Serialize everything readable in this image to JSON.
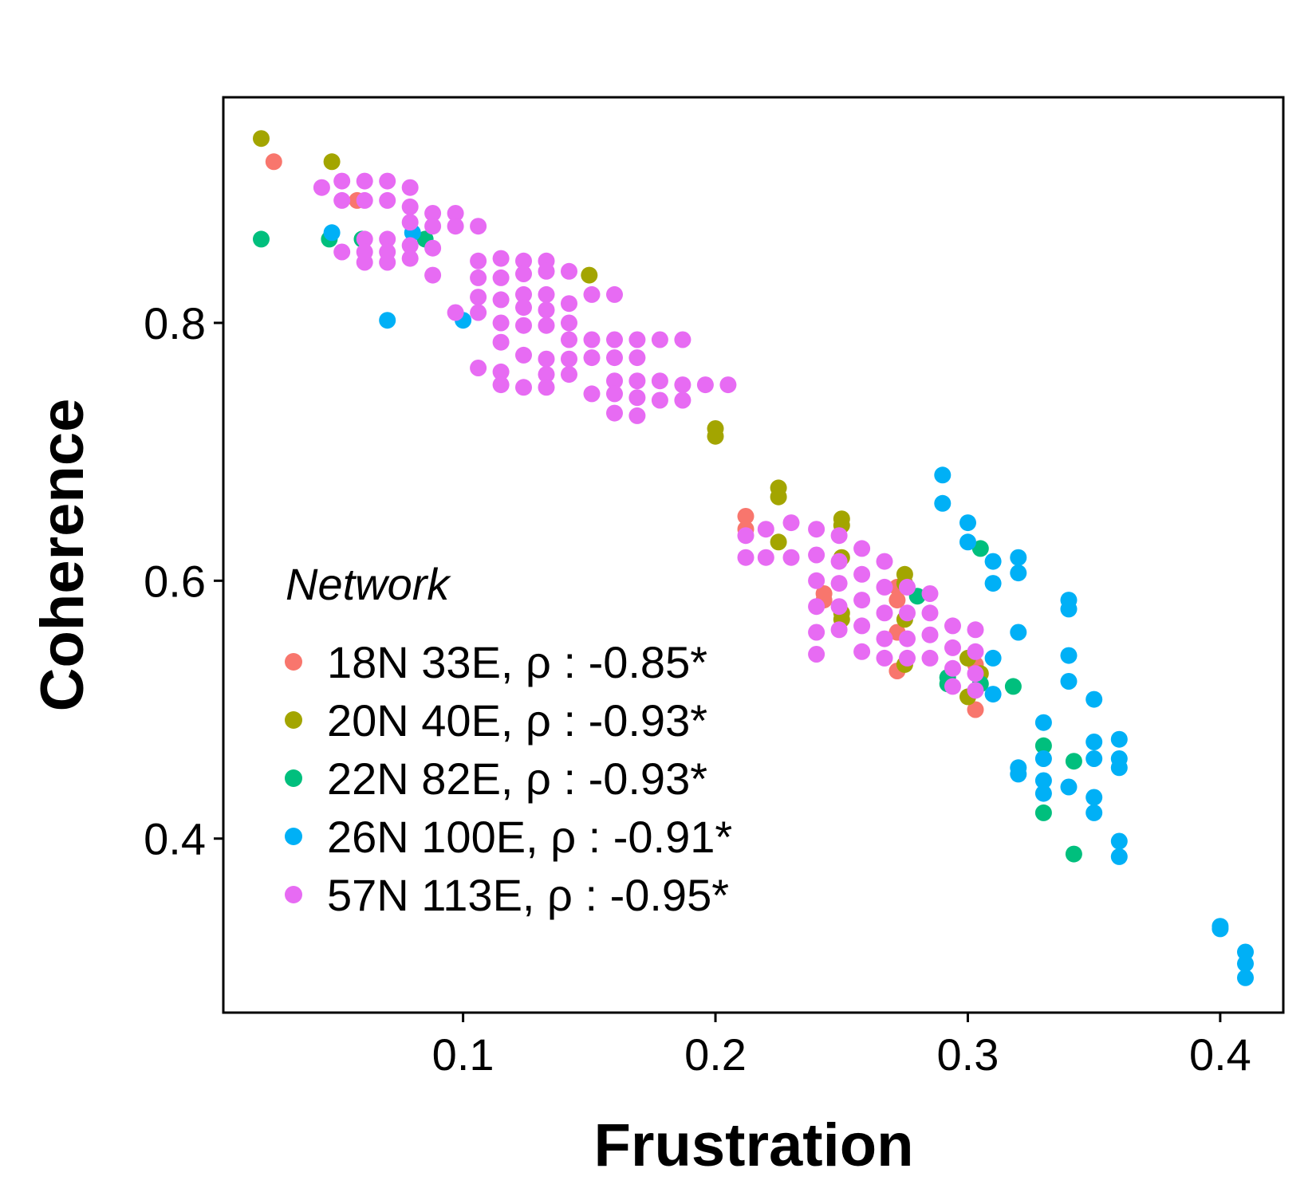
{
  "chart_data": {
    "type": "scatter",
    "xlabel": "Frustration",
    "ylabel": "Coherence",
    "xlim": [
      0.005,
      0.425
    ],
    "ylim": [
      0.265,
      0.975
    ],
    "xticks": [
      "0.1",
      "0.2",
      "0.3",
      "0.4"
    ],
    "yticks": [
      "0.4",
      "0.6",
      "0.8"
    ],
    "xtick_values": [
      0.1,
      0.2,
      0.3,
      0.4
    ],
    "ytick_values": [
      0.4,
      0.6,
      0.8
    ],
    "grid": false,
    "legend": {
      "title": "Network",
      "position": "inside-bottom-left"
    },
    "series": [
      {
        "name": "18N 33E, ρ : -0.85*",
        "color": "#F8766D",
        "points": [
          [
            0.025,
            0.925
          ],
          [
            0.058,
            0.895
          ],
          [
            0.212,
            0.65
          ],
          [
            0.212,
            0.64
          ],
          [
            0.243,
            0.59
          ],
          [
            0.243,
            0.585
          ],
          [
            0.272,
            0.595
          ],
          [
            0.272,
            0.585
          ],
          [
            0.272,
            0.56
          ],
          [
            0.272,
            0.53
          ],
          [
            0.303,
            0.535
          ],
          [
            0.303,
            0.5
          ]
        ]
      },
      {
        "name": "20N 40E, ρ : -0.93*",
        "color": "#A3A500",
        "points": [
          [
            0.02,
            0.943
          ],
          [
            0.048,
            0.925
          ],
          [
            0.15,
            0.837
          ],
          [
            0.2,
            0.718
          ],
          [
            0.2,
            0.712
          ],
          [
            0.225,
            0.672
          ],
          [
            0.225,
            0.665
          ],
          [
            0.225,
            0.63
          ],
          [
            0.25,
            0.648
          ],
          [
            0.25,
            0.643
          ],
          [
            0.25,
            0.618
          ],
          [
            0.25,
            0.575
          ],
          [
            0.25,
            0.57
          ],
          [
            0.275,
            0.605
          ],
          [
            0.275,
            0.598
          ],
          [
            0.275,
            0.57
          ],
          [
            0.275,
            0.535
          ],
          [
            0.3,
            0.54
          ],
          [
            0.3,
            0.51
          ],
          [
            0.305,
            0.528
          ]
        ]
      },
      {
        "name": "22N 82E, ρ : -0.93*",
        "color": "#00BF7D",
        "points": [
          [
            0.02,
            0.865
          ],
          [
            0.047,
            0.865
          ],
          [
            0.06,
            0.865
          ],
          [
            0.085,
            0.865
          ],
          [
            0.28,
            0.588
          ],
          [
            0.292,
            0.525
          ],
          [
            0.292,
            0.52
          ],
          [
            0.305,
            0.625
          ],
          [
            0.305,
            0.52
          ],
          [
            0.318,
            0.518
          ],
          [
            0.33,
            0.472
          ],
          [
            0.33,
            0.42
          ],
          [
            0.342,
            0.46
          ],
          [
            0.342,
            0.388
          ]
        ]
      },
      {
        "name": "26N 100E, ρ : -0.91*",
        "color": "#00B0F6",
        "points": [
          [
            0.048,
            0.87
          ],
          [
            0.07,
            0.802
          ],
          [
            0.08,
            0.87
          ],
          [
            0.1,
            0.802
          ],
          [
            0.29,
            0.682
          ],
          [
            0.29,
            0.66
          ],
          [
            0.3,
            0.645
          ],
          [
            0.3,
            0.63
          ],
          [
            0.31,
            0.615
          ],
          [
            0.31,
            0.598
          ],
          [
            0.31,
            0.54
          ],
          [
            0.31,
            0.512
          ],
          [
            0.32,
            0.618
          ],
          [
            0.32,
            0.606
          ],
          [
            0.32,
            0.56
          ],
          [
            0.32,
            0.455
          ],
          [
            0.32,
            0.45
          ],
          [
            0.33,
            0.49
          ],
          [
            0.33,
            0.462
          ],
          [
            0.33,
            0.445
          ],
          [
            0.33,
            0.435
          ],
          [
            0.34,
            0.585
          ],
          [
            0.34,
            0.578
          ],
          [
            0.34,
            0.542
          ],
          [
            0.34,
            0.522
          ],
          [
            0.34,
            0.44
          ],
          [
            0.35,
            0.508
          ],
          [
            0.35,
            0.475
          ],
          [
            0.35,
            0.462
          ],
          [
            0.35,
            0.432
          ],
          [
            0.35,
            0.42
          ],
          [
            0.36,
            0.477
          ],
          [
            0.36,
            0.462
          ],
          [
            0.36,
            0.455
          ],
          [
            0.36,
            0.398
          ],
          [
            0.36,
            0.386
          ],
          [
            0.4,
            0.332
          ],
          [
            0.4,
            0.33
          ],
          [
            0.41,
            0.312
          ],
          [
            0.41,
            0.303
          ],
          [
            0.41,
            0.292
          ]
        ]
      },
      {
        "name": "57N 113E, ρ : -0.95*",
        "color": "#E76BF3",
        "points": [
          [
            0.044,
            0.905
          ],
          [
            0.052,
            0.91
          ],
          [
            0.052,
            0.895
          ],
          [
            0.052,
            0.855
          ],
          [
            0.061,
            0.91
          ],
          [
            0.061,
            0.895
          ],
          [
            0.061,
            0.865
          ],
          [
            0.061,
            0.855
          ],
          [
            0.061,
            0.847
          ],
          [
            0.07,
            0.91
          ],
          [
            0.07,
            0.895
          ],
          [
            0.07,
            0.865
          ],
          [
            0.07,
            0.855
          ],
          [
            0.07,
            0.847
          ],
          [
            0.079,
            0.905
          ],
          [
            0.079,
            0.89
          ],
          [
            0.079,
            0.878
          ],
          [
            0.079,
            0.86
          ],
          [
            0.079,
            0.85
          ],
          [
            0.088,
            0.885
          ],
          [
            0.088,
            0.875
          ],
          [
            0.088,
            0.858
          ],
          [
            0.088,
            0.837
          ],
          [
            0.097,
            0.885
          ],
          [
            0.097,
            0.875
          ],
          [
            0.097,
            0.808
          ],
          [
            0.106,
            0.875
          ],
          [
            0.106,
            0.848
          ],
          [
            0.106,
            0.835
          ],
          [
            0.106,
            0.82
          ],
          [
            0.106,
            0.808
          ],
          [
            0.106,
            0.765
          ],
          [
            0.115,
            0.85
          ],
          [
            0.115,
            0.835
          ],
          [
            0.115,
            0.818
          ],
          [
            0.115,
            0.8
          ],
          [
            0.115,
            0.785
          ],
          [
            0.115,
            0.762
          ],
          [
            0.115,
            0.752
          ],
          [
            0.124,
            0.848
          ],
          [
            0.124,
            0.838
          ],
          [
            0.124,
            0.822
          ],
          [
            0.124,
            0.812
          ],
          [
            0.124,
            0.798
          ],
          [
            0.124,
            0.775
          ],
          [
            0.124,
            0.75
          ],
          [
            0.133,
            0.848
          ],
          [
            0.133,
            0.84
          ],
          [
            0.133,
            0.822
          ],
          [
            0.133,
            0.81
          ],
          [
            0.133,
            0.798
          ],
          [
            0.133,
            0.772
          ],
          [
            0.133,
            0.76
          ],
          [
            0.133,
            0.75
          ],
          [
            0.142,
            0.84
          ],
          [
            0.142,
            0.815
          ],
          [
            0.142,
            0.8
          ],
          [
            0.142,
            0.787
          ],
          [
            0.142,
            0.772
          ],
          [
            0.142,
            0.76
          ],
          [
            0.151,
            0.822
          ],
          [
            0.151,
            0.787
          ],
          [
            0.151,
            0.773
          ],
          [
            0.151,
            0.745
          ],
          [
            0.16,
            0.822
          ],
          [
            0.16,
            0.787
          ],
          [
            0.16,
            0.773
          ],
          [
            0.16,
            0.755
          ],
          [
            0.16,
            0.745
          ],
          [
            0.16,
            0.73
          ],
          [
            0.169,
            0.787
          ],
          [
            0.169,
            0.773
          ],
          [
            0.169,
            0.755
          ],
          [
            0.169,
            0.742
          ],
          [
            0.169,
            0.728
          ],
          [
            0.178,
            0.787
          ],
          [
            0.178,
            0.755
          ],
          [
            0.178,
            0.74
          ],
          [
            0.187,
            0.787
          ],
          [
            0.187,
            0.752
          ],
          [
            0.187,
            0.74
          ],
          [
            0.196,
            0.752
          ],
          [
            0.205,
            0.752
          ],
          [
            0.212,
            0.635
          ],
          [
            0.212,
            0.618
          ],
          [
            0.22,
            0.64
          ],
          [
            0.22,
            0.618
          ],
          [
            0.23,
            0.645
          ],
          [
            0.23,
            0.618
          ],
          [
            0.24,
            0.64
          ],
          [
            0.24,
            0.62
          ],
          [
            0.24,
            0.6
          ],
          [
            0.24,
            0.58
          ],
          [
            0.24,
            0.56
          ],
          [
            0.24,
            0.543
          ],
          [
            0.249,
            0.635
          ],
          [
            0.249,
            0.615
          ],
          [
            0.249,
            0.598
          ],
          [
            0.249,
            0.58
          ],
          [
            0.249,
            0.562
          ],
          [
            0.258,
            0.625
          ],
          [
            0.258,
            0.605
          ],
          [
            0.258,
            0.585
          ],
          [
            0.258,
            0.565
          ],
          [
            0.258,
            0.545
          ],
          [
            0.267,
            0.615
          ],
          [
            0.267,
            0.595
          ],
          [
            0.267,
            0.575
          ],
          [
            0.267,
            0.555
          ],
          [
            0.267,
            0.54
          ],
          [
            0.276,
            0.595
          ],
          [
            0.276,
            0.575
          ],
          [
            0.276,
            0.555
          ],
          [
            0.276,
            0.54
          ],
          [
            0.285,
            0.59
          ],
          [
            0.285,
            0.575
          ],
          [
            0.285,
            0.558
          ],
          [
            0.285,
            0.54
          ],
          [
            0.294,
            0.565
          ],
          [
            0.294,
            0.548
          ],
          [
            0.294,
            0.532
          ],
          [
            0.294,
            0.518
          ],
          [
            0.303,
            0.562
          ],
          [
            0.303,
            0.545
          ],
          [
            0.303,
            0.528
          ],
          [
            0.303,
            0.515
          ]
        ]
      }
    ]
  }
}
